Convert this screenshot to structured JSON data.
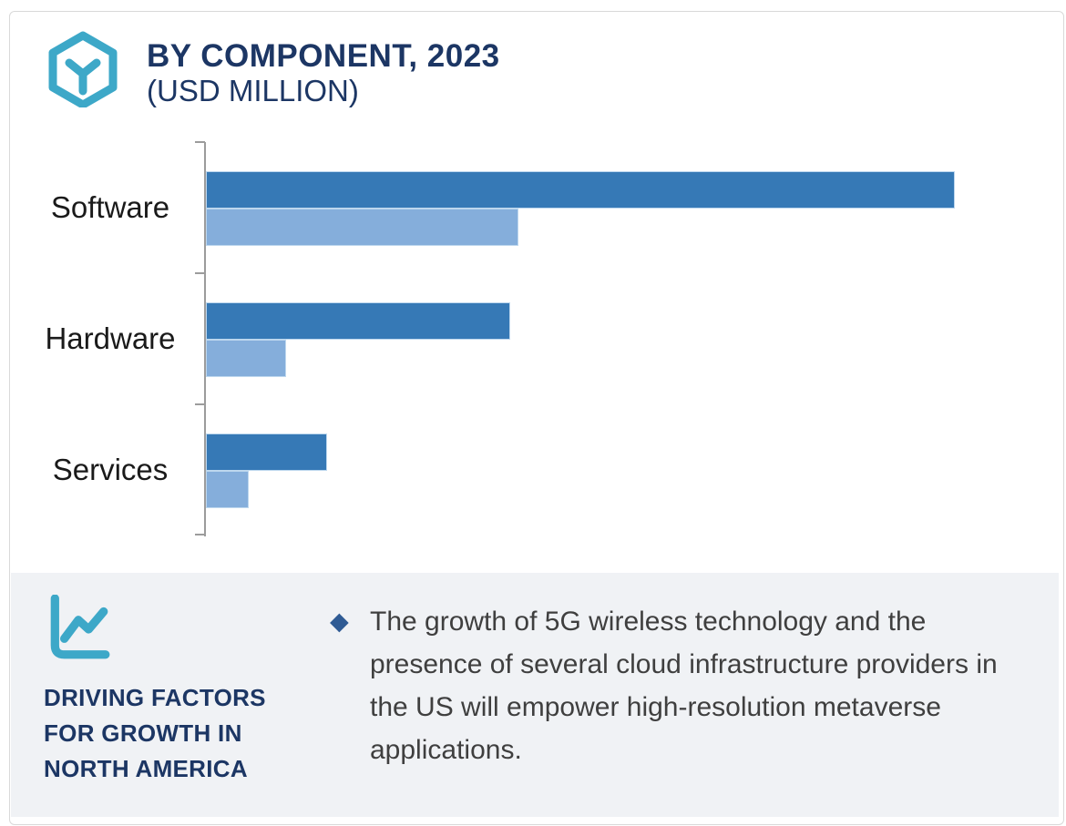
{
  "header": {
    "title_line1": "BY COMPONENT, 2023",
    "title_line2": "(USD MILLION)",
    "title_color": "#1c3664",
    "logo_icon": "hexagon-cube-logo",
    "logo_color": "#3da8c8"
  },
  "chart_data": {
    "type": "bar",
    "orientation": "horizontal",
    "title": "BY COMPONENT, 2023 (USD MILLION)",
    "categories": [
      "Software",
      "Hardware",
      "Services"
    ],
    "series": [
      {
        "name": "dark-blue-series",
        "color": "#3679b6",
        "values": [
          89.2,
          36.2,
          14.4
        ]
      },
      {
        "name": "light-blue-series",
        "color": "#85aedb",
        "values": [
          37.2,
          9.5,
          5.1
        ]
      }
    ],
    "value_note": "no numeric axis, gridlines or data labels shown; values estimated as percent of plot width",
    "xlim": [
      0,
      100
    ],
    "grid": false,
    "legend": false,
    "axis_color": "#9c9c9c",
    "bar_border_color": "#bdd7ee",
    "category_label_color": "#1a1a1a"
  },
  "panel": {
    "background": "#f0f2f5",
    "icon": "line-chart-icon",
    "icon_color": "#3da8c8",
    "heading_lines": [
      "DRIVING FACTORS",
      "FOR GROWTH IN",
      "NORTH AMERICA"
    ],
    "heading_color": "#1c3664",
    "bullet_glyph": "◆",
    "bullet_color": "#2f5b94",
    "bullet_text": "The growth of 5G wireless technology and the presence of several cloud infrastructure providers in the US will empower high-resolution metaverse applications.",
    "text_color": "#3f3f3f"
  }
}
